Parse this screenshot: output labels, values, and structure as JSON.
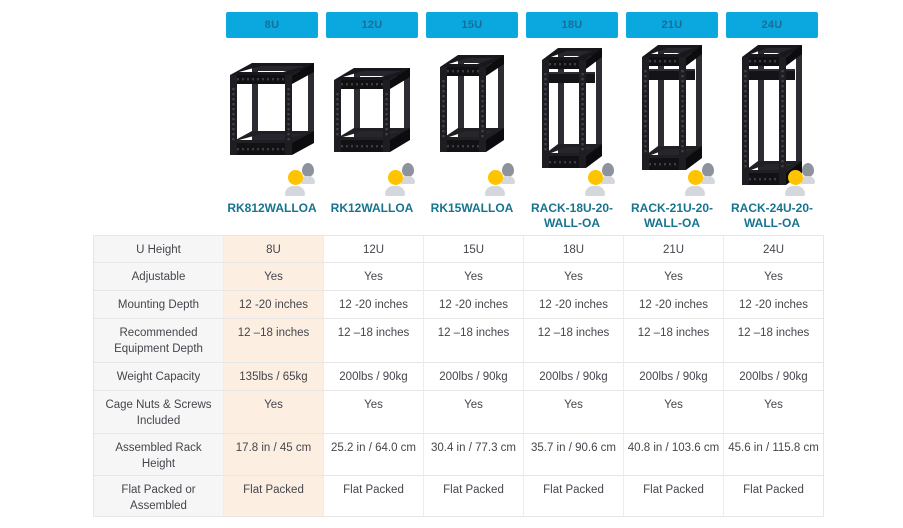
{
  "colors": {
    "badge_bg": "#0ba7df",
    "badge_text": "#176f96",
    "sku_link": "#17748f",
    "highlight_column_bg": "#fcefe2",
    "label_column_bg": "#f6f6f6",
    "table_border": "#e6e6e6",
    "text": "#45454d",
    "icon_yellow": "#ffc400",
    "icon_gray_dark": "#8d939c",
    "icon_gray_light": "#d4d7db"
  },
  "products": [
    {
      "size_label": "8U",
      "sku": "RK812WALLOA"
    },
    {
      "size_label": "12U",
      "sku": "RK12WALLOA"
    },
    {
      "size_label": "15U",
      "sku": "RK15WALLOA"
    },
    {
      "size_label": "18U",
      "sku": "RACK-18U-20-WALL-OA"
    },
    {
      "size_label": "21U",
      "sku": "RACK-21U-20-WALL-OA"
    },
    {
      "size_label": "24U",
      "sku": "RACK-24U-20-WALL-OA"
    }
  ],
  "table": {
    "rows": [
      {
        "label": "U Height",
        "values": [
          "8U",
          "12U",
          "15U",
          "18U",
          "21U",
          "24U"
        ]
      },
      {
        "label": "Adjustable",
        "values": [
          "Yes",
          "Yes",
          "Yes",
          "Yes",
          "Yes",
          "Yes"
        ]
      },
      {
        "label": "Mounting Depth",
        "values": [
          "12 -20 inches",
          "12 -20 inches",
          "12 -20 inches",
          "12 -20 inches",
          "12 -20 inches",
          "12 -20 inches"
        ]
      },
      {
        "label": "Recommended Equipment Depth",
        "values": [
          "12 –18 inches",
          "12 –18 inches",
          "12 –18 inches",
          "12 –18 inches",
          "12 –18 inches",
          "12 –18 inches"
        ]
      },
      {
        "label": "Weight Capacity",
        "values": [
          "135lbs / 65kg",
          "200lbs / 90kg",
          "200lbs / 90kg",
          "200lbs / 90kg",
          "200lbs / 90kg",
          "200lbs / 90kg"
        ]
      },
      {
        "label": "Cage Nuts & Screws Included",
        "values": [
          "Yes",
          "Yes",
          "Yes",
          "Yes",
          "Yes",
          "Yes"
        ]
      },
      {
        "label": "Assembled Rack Height",
        "values": [
          "17.8 in / 45 cm",
          "25.2 in / 64.0 cm",
          "30.4 in / 77.3 cm",
          "35.7 in / 90.6 cm",
          "40.8 in / 103.6 cm",
          "45.6 in / 115.8 cm"
        ]
      },
      {
        "label": "Flat Packed or Assembled",
        "values": [
          "Flat Packed",
          "Flat Packed",
          "Flat Packed",
          "Flat Packed",
          "Flat Packed",
          "Flat Packed"
        ]
      }
    ]
  }
}
